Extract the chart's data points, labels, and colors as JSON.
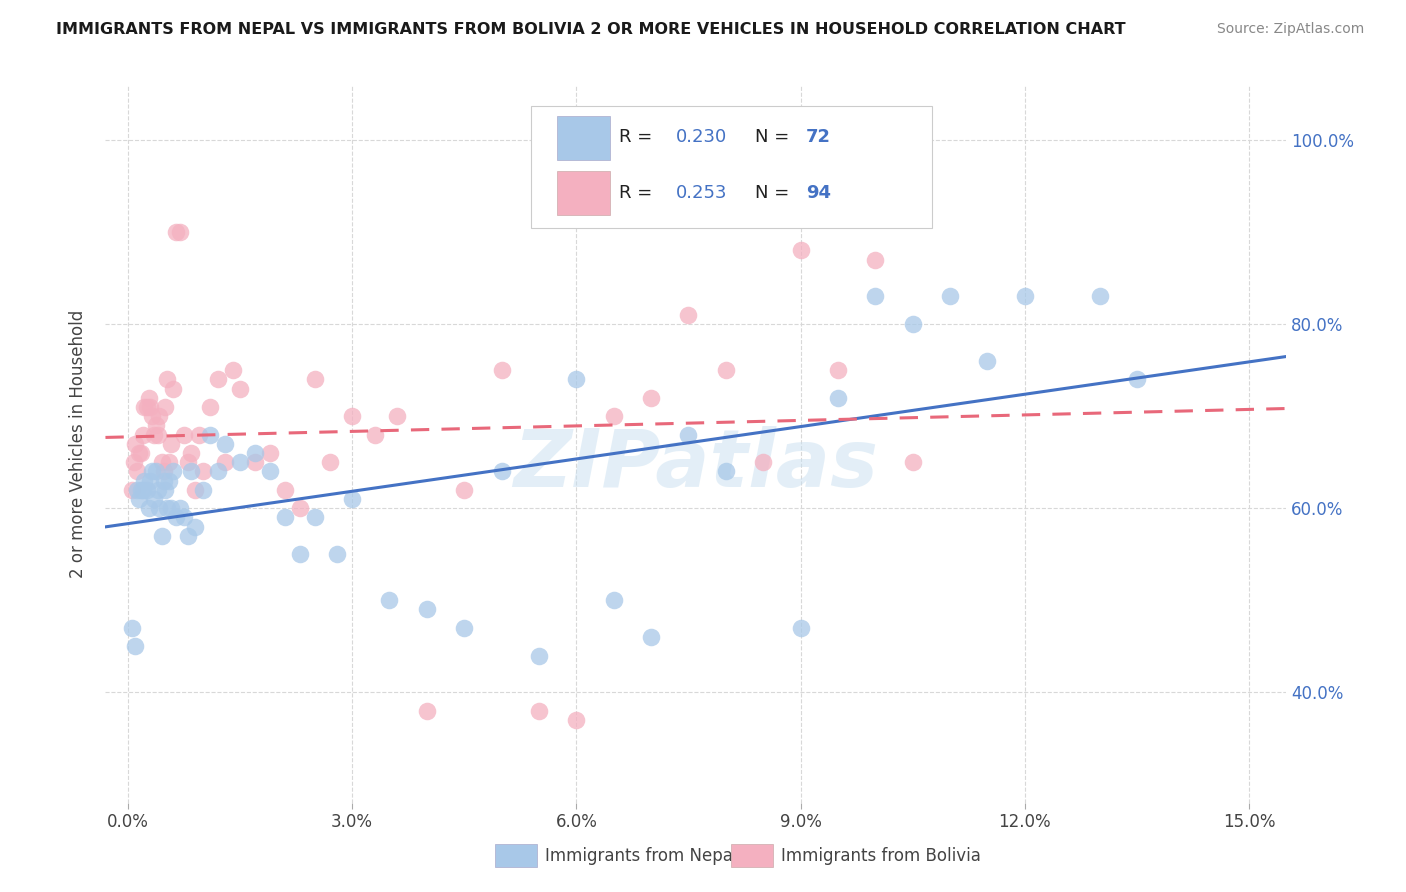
{
  "title": "IMMIGRANTS FROM NEPAL VS IMMIGRANTS FROM BOLIVIA 2 OR MORE VEHICLES IN HOUSEHOLD CORRELATION CHART",
  "source": "Source: ZipAtlas.com",
  "xlim": [
    -0.3,
    15.5
  ],
  "ylim": [
    28.0,
    106.0
  ],
  "ylabel": "2 or more Vehicles in Household",
  "nepal_R": 0.23,
  "nepal_N": 72,
  "bolivia_R": 0.253,
  "bolivia_N": 94,
  "nepal_color": "#a8c8e8",
  "bolivia_color": "#f4b0c0",
  "nepal_line_color": "#4472c4",
  "bolivia_line_color": "#e8687a",
  "watermark": "ZIPatlas",
  "legend_text_color": "#4472c4",
  "legend_R_N_color": "#333333",
  "nepal_x": [
    0.05,
    0.1,
    0.12,
    0.15,
    0.18,
    0.2,
    0.22,
    0.25,
    0.28,
    0.3,
    0.32,
    0.35,
    0.38,
    0.4,
    0.42,
    0.45,
    0.48,
    0.5,
    0.52,
    0.55,
    0.58,
    0.6,
    0.65,
    0.7,
    0.75,
    0.8,
    0.85,
    0.9,
    1.0,
    1.1,
    1.2,
    1.3,
    1.5,
    1.7,
    1.9,
    2.1,
    2.3,
    2.5,
    2.8,
    3.0,
    3.5,
    4.0,
    4.5,
    5.0,
    5.5,
    6.0,
    6.5,
    7.0,
    7.5,
    8.0,
    9.0,
    9.5,
    10.0,
    10.5,
    11.0,
    11.5,
    12.0,
    13.0,
    13.5
  ],
  "nepal_y": [
    47.0,
    45.0,
    62.0,
    61.0,
    62.0,
    62.0,
    63.0,
    62.0,
    60.0,
    63.0,
    64.0,
    61.0,
    64.0,
    62.0,
    60.0,
    57.0,
    63.0,
    62.0,
    60.0,
    63.0,
    60.0,
    64.0,
    59.0,
    60.0,
    59.0,
    57.0,
    64.0,
    58.0,
    62.0,
    68.0,
    64.0,
    67.0,
    65.0,
    66.0,
    64.0,
    59.0,
    55.0,
    59.0,
    55.0,
    61.0,
    50.0,
    49.0,
    47.0,
    64.0,
    44.0,
    74.0,
    50.0,
    46.0,
    68.0,
    64.0,
    47.0,
    72.0,
    83.0,
    80.0,
    83.0,
    76.0,
    83.0,
    83.0,
    74.0
  ],
  "bolivia_x": [
    0.05,
    0.08,
    0.1,
    0.12,
    0.15,
    0.18,
    0.2,
    0.22,
    0.25,
    0.28,
    0.3,
    0.32,
    0.35,
    0.38,
    0.4,
    0.42,
    0.45,
    0.48,
    0.5,
    0.52,
    0.55,
    0.58,
    0.6,
    0.65,
    0.7,
    0.75,
    0.8,
    0.85,
    0.9,
    0.95,
    1.0,
    1.1,
    1.2,
    1.3,
    1.4,
    1.5,
    1.7,
    1.9,
    2.1,
    2.3,
    2.5,
    2.7,
    3.0,
    3.3,
    3.6,
    4.0,
    4.5,
    5.0,
    5.5,
    6.0,
    6.5,
    7.0,
    7.5,
    8.0,
    8.5,
    9.0,
    9.5,
    10.0,
    10.5
  ],
  "bolivia_y": [
    62.0,
    65.0,
    67.0,
    64.0,
    66.0,
    66.0,
    68.0,
    71.0,
    71.0,
    72.0,
    71.0,
    70.0,
    68.0,
    69.0,
    68.0,
    70.0,
    65.0,
    64.0,
    71.0,
    74.0,
    65.0,
    67.0,
    73.0,
    90.0,
    90.0,
    68.0,
    65.0,
    66.0,
    62.0,
    68.0,
    64.0,
    71.0,
    74.0,
    65.0,
    75.0,
    73.0,
    65.0,
    66.0,
    62.0,
    60.0,
    74.0,
    65.0,
    70.0,
    68.0,
    70.0,
    38.0,
    62.0,
    75.0,
    38.0,
    37.0,
    70.0,
    72.0,
    81.0,
    75.0,
    65.0,
    88.0,
    75.0,
    87.0,
    65.0
  ]
}
